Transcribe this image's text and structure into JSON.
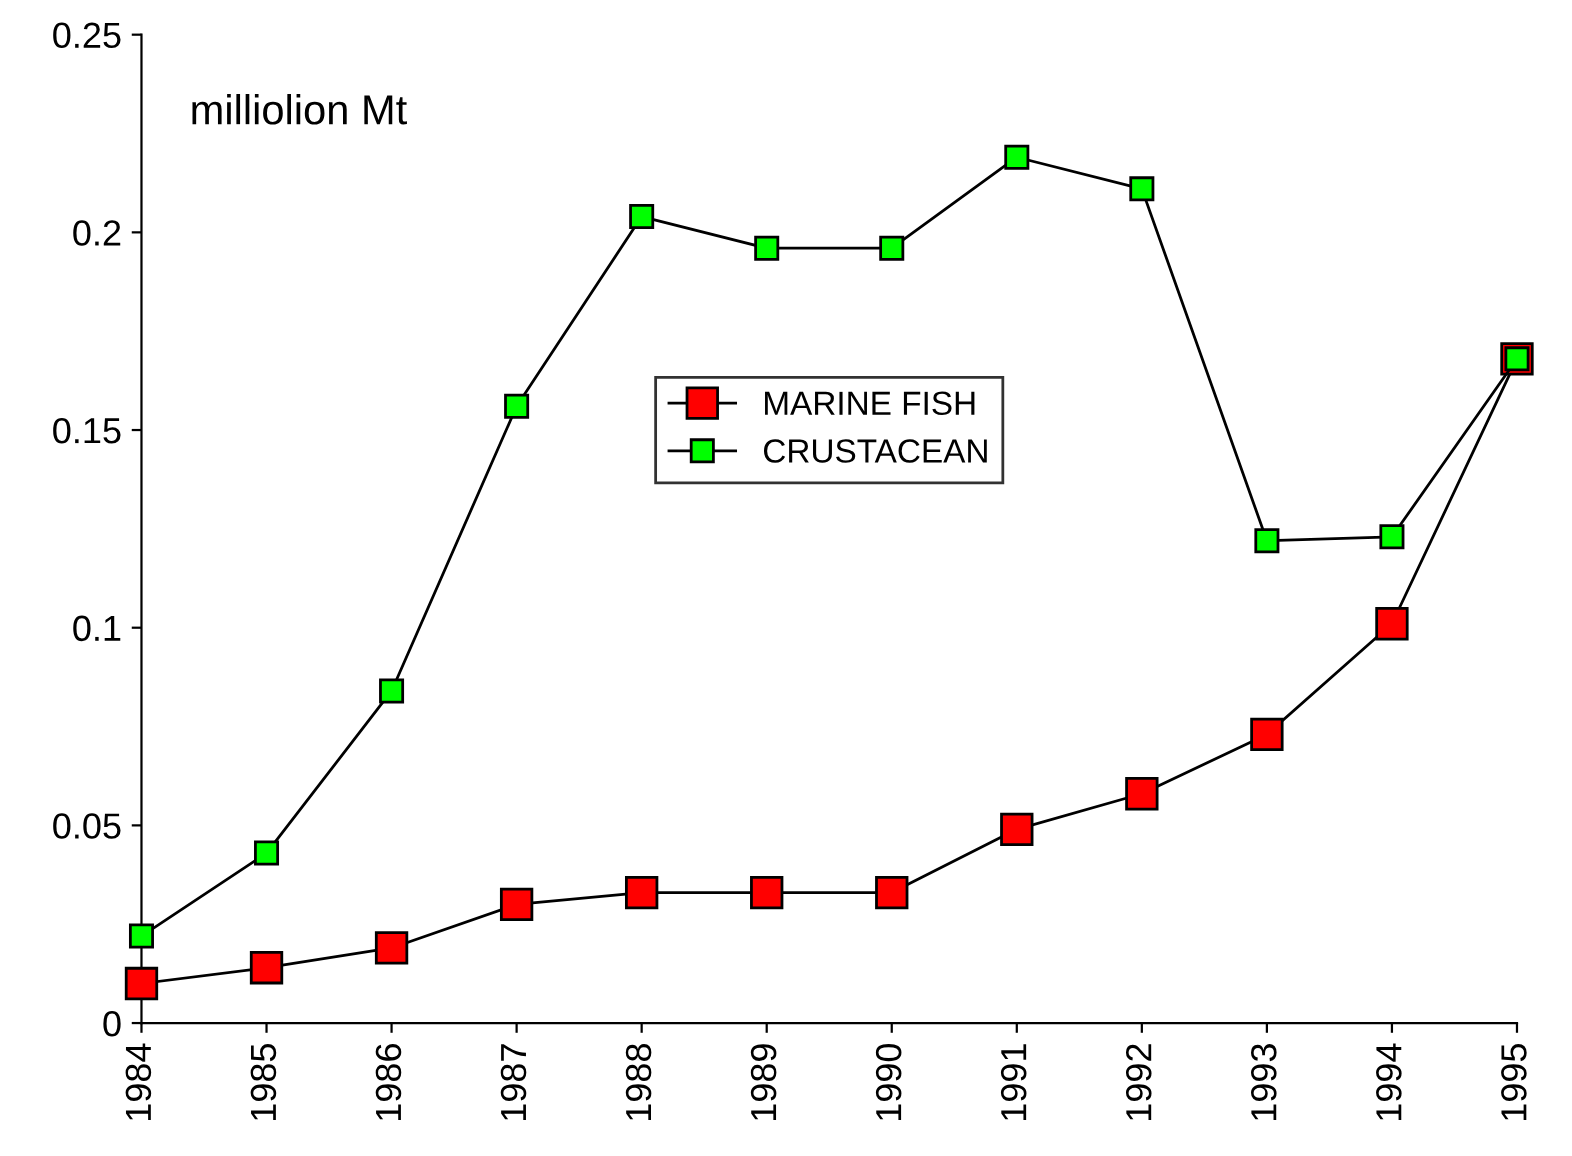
{
  "chart_data": {
    "type": "line",
    "categories": [
      "1984",
      "1985",
      "1986",
      "1987",
      "1988",
      "1989",
      "1990",
      "1991",
      "1992",
      "1993",
      "1994",
      "1995"
    ],
    "series": [
      {
        "name": "MARINE FISH",
        "color": "#ff0000",
        "values": [
          0.01,
          0.014,
          0.019,
          0.03,
          0.033,
          0.033,
          0.033,
          0.049,
          0.058,
          0.073,
          0.101,
          0.168
        ]
      },
      {
        "name": "CRUSTACEAN",
        "color": "#00ff00",
        "values": [
          0.022,
          0.043,
          0.084,
          0.156,
          0.204,
          0.196,
          0.196,
          0.219,
          0.211,
          0.122,
          0.123,
          0.168
        ]
      }
    ],
    "ylim": [
      0,
      0.25
    ],
    "yticks": [
      0,
      0.05,
      0.1,
      0.15,
      0.2,
      0.25
    ],
    "annotations": [
      "milliolion Mt"
    ],
    "marker": "square",
    "line_style": "solid",
    "legend": "center",
    "grid": false
  }
}
